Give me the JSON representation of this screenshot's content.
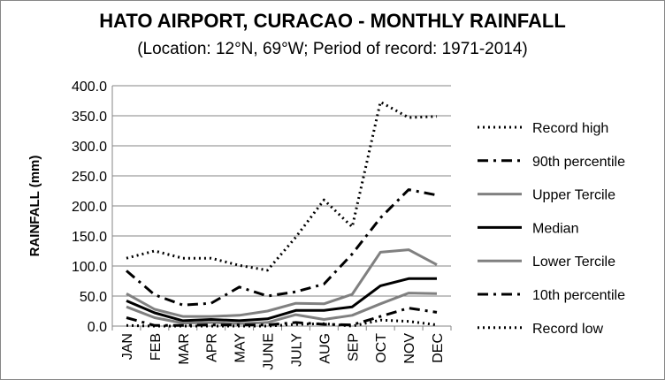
{
  "chart_data": {
    "type": "line",
    "title": "HATO AIRPORT, CURACAO - MONTHLY RAINFALL",
    "subtitle": "(Location: 12°N, 69°W; Period of record: 1971-2014)",
    "xlabel": "",
    "ylabel": "RAINFALL (mm)",
    "ylim": [
      0,
      400
    ],
    "yticks": [
      "0.0",
      "50.0",
      "100.0",
      "150.0",
      "200.0",
      "250.0",
      "300.0",
      "350.0",
      "400.0"
    ],
    "categories": [
      "JAN",
      "FEB",
      "MAR",
      "APR",
      "MAY",
      "JUNE",
      "JULY",
      "AUG",
      "SEP",
      "OCT",
      "NOV",
      "DEC"
    ],
    "grid": "horizontal",
    "legend_position": "right",
    "series": [
      {
        "name": "Record high",
        "style": "dotted",
        "color": "#000000",
        "width": 3,
        "values": [
          113,
          125,
          113,
          113,
          101,
          93,
          148,
          210,
          165,
          373,
          347,
          349
        ]
      },
      {
        "name": "90th percentile",
        "style": "dashdot",
        "color": "#000000",
        "width": 3,
        "values": [
          92,
          52,
          35,
          38,
          65,
          50,
          57,
          70,
          120,
          180,
          227,
          218
        ]
      },
      {
        "name": "Upper Tercile",
        "style": "solid",
        "color": "#808080",
        "width": 3,
        "values": [
          54,
          28,
          16,
          16,
          18,
          25,
          38,
          37,
          53,
          123,
          127,
          102
        ]
      },
      {
        "name": "Median",
        "style": "solid",
        "color": "#000000",
        "width": 3,
        "values": [
          42,
          22,
          9,
          11,
          9,
          12,
          26,
          26,
          32,
          67,
          79,
          79
        ]
      },
      {
        "name": "Lower Tercile",
        "style": "solid",
        "color": "#808080",
        "width": 3,
        "values": [
          32,
          14,
          5,
          6,
          4,
          6,
          19,
          11,
          18,
          37,
          55,
          54
        ]
      },
      {
        "name": "10th percentile",
        "style": "dashdot",
        "color": "#000000",
        "width": 3,
        "values": [
          14,
          1,
          1,
          2,
          2,
          2,
          6,
          3,
          2,
          16,
          30,
          23
        ]
      },
      {
        "name": "Record low",
        "style": "dotted",
        "color": "#000000",
        "width": 3,
        "values": [
          1,
          0,
          0,
          0,
          0,
          0,
          3,
          4,
          0,
          10,
          8,
          2
        ]
      }
    ]
  }
}
